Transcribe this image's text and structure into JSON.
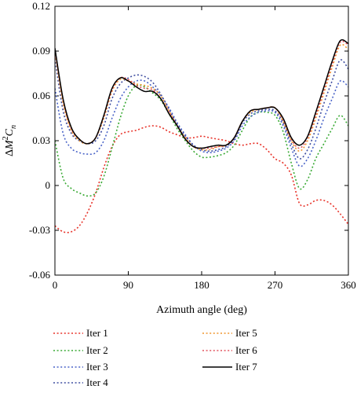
{
  "chart_data": {
    "type": "line",
    "title": "",
    "xlabel": "Azimuth angle (deg)",
    "ylabel_parts": {
      "delta": "Δ",
      "m": "M",
      "sup": "2",
      "c": "C",
      "sub": "n"
    },
    "xlim": [
      0,
      360
    ],
    "ylim": [
      -0.06,
      0.12
    ],
    "xticks": [
      0,
      90,
      180,
      270,
      360
    ],
    "xtick_labels": [
      "0",
      "90",
      "180",
      "270",
      "360"
    ],
    "yticks": [
      -0.06,
      -0.03,
      0,
      0.03,
      0.06,
      0.09,
      0.12
    ],
    "ytick_labels": [
      "-0.06",
      "-0.03",
      "0",
      "0.03",
      "0.06",
      "0.09",
      "0.12"
    ],
    "grid": false,
    "legend_position": "bottom",
    "series": [
      {
        "name": "Iter 1",
        "color": "#e8332a",
        "dash": "dotted",
        "x": [
          0,
          10,
          20,
          30,
          40,
          50,
          60,
          70,
          80,
          90,
          100,
          110,
          120,
          130,
          140,
          150,
          160,
          170,
          180,
          190,
          200,
          210,
          220,
          230,
          240,
          250,
          260,
          270,
          280,
          290,
          300,
          310,
          320,
          330,
          340,
          350,
          360
        ],
        "y": [
          -0.027,
          -0.031,
          -0.031,
          -0.027,
          -0.018,
          -0.005,
          0.012,
          0.026,
          0.034,
          0.036,
          0.037,
          0.039,
          0.04,
          0.039,
          0.036,
          0.034,
          0.032,
          0.032,
          0.033,
          0.032,
          0.031,
          0.03,
          0.028,
          0.027,
          0.028,
          0.028,
          0.024,
          0.018,
          0.015,
          0.007,
          -0.012,
          -0.013,
          -0.01,
          -0.01,
          -0.013,
          -0.019,
          -0.026
        ]
      },
      {
        "name": "Iter 2",
        "color": "#3aaa35",
        "dash": "dotted",
        "x": [
          0,
          10,
          20,
          30,
          40,
          50,
          60,
          70,
          80,
          90,
          100,
          110,
          120,
          130,
          140,
          150,
          160,
          170,
          180,
          190,
          200,
          210,
          220,
          230,
          240,
          250,
          260,
          270,
          280,
          290,
          300,
          310,
          320,
          330,
          340,
          350,
          360
        ],
        "y": [
          0.03,
          0.005,
          -0.002,
          -0.005,
          -0.007,
          -0.005,
          0.006,
          0.025,
          0.045,
          0.06,
          0.067,
          0.066,
          0.062,
          0.057,
          0.048,
          0.038,
          0.03,
          0.023,
          0.019,
          0.019,
          0.02,
          0.022,
          0.027,
          0.037,
          0.046,
          0.049,
          0.049,
          0.047,
          0.036,
          0.015,
          -0.002,
          0.004,
          0.018,
          0.028,
          0.038,
          0.047,
          0.04
        ]
      },
      {
        "name": "Iter 3",
        "color": "#4a64c8",
        "dash": "dotted",
        "x": [
          0,
          10,
          20,
          30,
          40,
          50,
          60,
          70,
          80,
          90,
          100,
          110,
          120,
          130,
          140,
          150,
          160,
          170,
          180,
          190,
          200,
          210,
          220,
          230,
          240,
          250,
          260,
          270,
          280,
          290,
          300,
          310,
          320,
          330,
          340,
          350,
          360
        ],
        "y": [
          0.065,
          0.035,
          0.025,
          0.022,
          0.021,
          0.022,
          0.03,
          0.045,
          0.058,
          0.066,
          0.07,
          0.07,
          0.066,
          0.06,
          0.052,
          0.042,
          0.034,
          0.027,
          0.023,
          0.022,
          0.023,
          0.025,
          0.03,
          0.04,
          0.046,
          0.049,
          0.05,
          0.049,
          0.04,
          0.025,
          0.013,
          0.018,
          0.03,
          0.045,
          0.058,
          0.07,
          0.066
        ]
      },
      {
        "name": "Iter 4",
        "color": "#3f4ea0",
        "dash": "dotted",
        "x": [
          0,
          10,
          20,
          30,
          40,
          50,
          60,
          70,
          80,
          90,
          100,
          110,
          120,
          130,
          140,
          150,
          160,
          170,
          180,
          190,
          200,
          210,
          220,
          230,
          240,
          250,
          260,
          270,
          280,
          290,
          300,
          310,
          320,
          330,
          340,
          350,
          360
        ],
        "y": [
          0.085,
          0.05,
          0.035,
          0.03,
          0.028,
          0.03,
          0.04,
          0.058,
          0.068,
          0.072,
          0.074,
          0.073,
          0.069,
          0.061,
          0.051,
          0.041,
          0.033,
          0.027,
          0.024,
          0.023,
          0.024,
          0.026,
          0.031,
          0.042,
          0.048,
          0.05,
          0.051,
          0.05,
          0.042,
          0.028,
          0.018,
          0.024,
          0.038,
          0.055,
          0.07,
          0.084,
          0.078
        ]
      },
      {
        "name": "Iter 5",
        "color": "#f0962e",
        "dash": "dotted",
        "x": [
          0,
          10,
          20,
          30,
          40,
          50,
          60,
          70,
          80,
          90,
          100,
          110,
          120,
          130,
          140,
          150,
          160,
          170,
          180,
          190,
          200,
          210,
          220,
          230,
          240,
          250,
          260,
          270,
          280,
          290,
          300,
          310,
          320,
          330,
          340,
          350,
          360
        ],
        "y": [
          0.09,
          0.055,
          0.037,
          0.03,
          0.028,
          0.032,
          0.045,
          0.063,
          0.071,
          0.07,
          0.068,
          0.067,
          0.065,
          0.06,
          0.05,
          0.04,
          0.032,
          0.026,
          0.024,
          0.024,
          0.026,
          0.027,
          0.032,
          0.043,
          0.049,
          0.051,
          0.052,
          0.052,
          0.043,
          0.03,
          0.023,
          0.03,
          0.045,
          0.062,
          0.079,
          0.094,
          0.091
        ]
      },
      {
        "name": "Iter 6",
        "color": "#e2535e",
        "dash": "dotted",
        "x": [
          0,
          10,
          20,
          30,
          40,
          50,
          60,
          70,
          80,
          90,
          100,
          110,
          120,
          130,
          140,
          150,
          160,
          170,
          180,
          190,
          200,
          210,
          220,
          230,
          240,
          250,
          260,
          270,
          280,
          290,
          300,
          310,
          320,
          330,
          340,
          350,
          360
        ],
        "y": [
          0.091,
          0.057,
          0.038,
          0.031,
          0.028,
          0.032,
          0.046,
          0.064,
          0.072,
          0.071,
          0.067,
          0.065,
          0.064,
          0.058,
          0.049,
          0.04,
          0.031,
          0.026,
          0.025,
          0.025,
          0.026,
          0.027,
          0.032,
          0.043,
          0.05,
          0.051,
          0.052,
          0.052,
          0.044,
          0.031,
          0.025,
          0.032,
          0.047,
          0.064,
          0.081,
          0.096,
          0.094
        ]
      },
      {
        "name": "Iter 7",
        "color": "#000000",
        "dash": "solid",
        "x": [
          0,
          10,
          20,
          30,
          40,
          50,
          60,
          70,
          80,
          90,
          100,
          110,
          120,
          130,
          140,
          150,
          160,
          170,
          180,
          190,
          200,
          210,
          220,
          230,
          240,
          250,
          260,
          270,
          280,
          290,
          300,
          310,
          320,
          330,
          340,
          350,
          360
        ],
        "y": [
          0.092,
          0.058,
          0.039,
          0.031,
          0.028,
          0.032,
          0.047,
          0.065,
          0.072,
          0.07,
          0.066,
          0.063,
          0.063,
          0.058,
          0.048,
          0.04,
          0.031,
          0.026,
          0.025,
          0.026,
          0.027,
          0.027,
          0.032,
          0.043,
          0.05,
          0.051,
          0.052,
          0.052,
          0.045,
          0.032,
          0.027,
          0.033,
          0.049,
          0.066,
          0.083,
          0.097,
          0.095
        ]
      }
    ]
  }
}
